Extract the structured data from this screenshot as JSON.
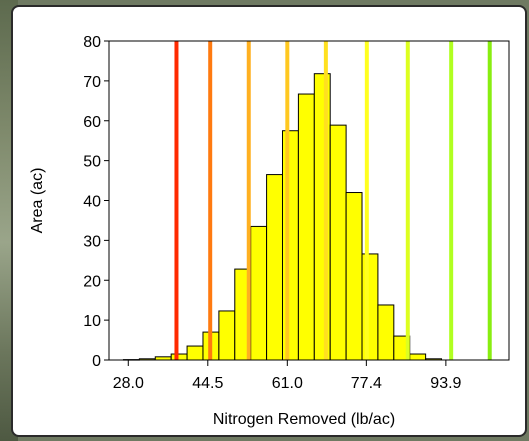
{
  "chart_data": {
    "type": "bar",
    "xlabel": "Nitrogen Removed (lb/ac)",
    "ylabel": "Area (ac)",
    "ylim": [
      0,
      80
    ],
    "yticks": [
      0,
      10,
      20,
      30,
      40,
      50,
      60,
      70,
      80
    ],
    "xticks": [
      "28.0",
      "44.5",
      "61.0",
      "77.4",
      "93.9"
    ],
    "xtick_values": [
      28.0,
      44.5,
      61.0,
      77.4,
      93.9
    ],
    "xlim": [
      24.0,
      107.0
    ],
    "bin_width": 3.3,
    "bin_start": 27.0,
    "values": [
      0.1,
      0.3,
      0.8,
      1.5,
      3.5,
      7.0,
      12.3,
      22.8,
      33.5,
      46.5,
      57.5,
      66.7,
      71.8,
      58.9,
      42.0,
      26.6,
      13.8,
      6.0,
      1.5,
      0.3
    ],
    "bar_color": "#ffff00",
    "threshold_lines": [
      {
        "x": 38.0,
        "color": "#ff2a00"
      },
      {
        "x": 45.0,
        "color": "#ff7a10"
      },
      {
        "x": 53.0,
        "color": "#ffb020"
      },
      {
        "x": 61.0,
        "color": "#ffc820"
      },
      {
        "x": 69.0,
        "color": "#ffe020"
      },
      {
        "x": 77.5,
        "color": "#ffff20"
      },
      {
        "x": 86.0,
        "color": "#ddff20"
      },
      {
        "x": 95.0,
        "color": "#b0ff20"
      },
      {
        "x": 103.0,
        "color": "#88ee10"
      }
    ],
    "grid": false
  }
}
